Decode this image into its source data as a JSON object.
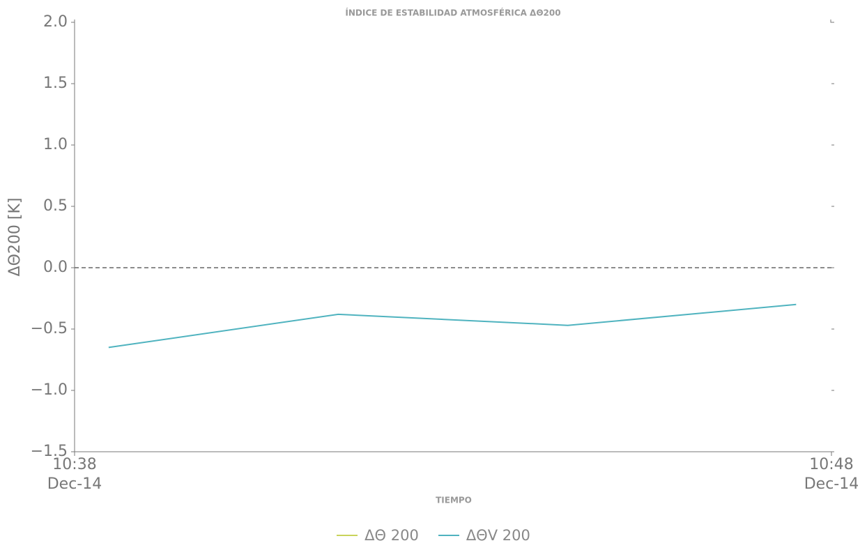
{
  "chart_data": {
    "type": "line",
    "title": "ÍNDICE DE ESTABILIDAD ATMOSFÉRICA ΔΘ200",
    "xlabel": "TIEMPO",
    "ylabel": "ΔΘ200 [K]",
    "x": [
      "10:38:27",
      "10:41:29",
      "10:44:31",
      "10:47:32"
    ],
    "xlim": [
      "10:38",
      "10:48"
    ],
    "xticks": [
      {
        "value": "10:38",
        "label": "10:38\nDec-14"
      },
      {
        "value": "10:48",
        "label": "10:48\nDec-14"
      }
    ],
    "ylim": [
      -1.5,
      2.0
    ],
    "yticks": [
      {
        "value": -1.5,
        "label": "−1.5"
      },
      {
        "value": -1.0,
        "label": "−1.0"
      },
      {
        "value": -0.5,
        "label": "−0.5"
      },
      {
        "value": 0.0,
        "label": "0.0"
      },
      {
        "value": 0.5,
        "label": "0.5"
      },
      {
        "value": 1.0,
        "label": "1.0"
      },
      {
        "value": 1.5,
        "label": "1.5"
      },
      {
        "value": 2.0,
        "label": "2.0"
      }
    ],
    "reference_line": 0,
    "series": [
      {
        "name": "ΔΘ 200",
        "color": "#c9d35b",
        "values": [
          null,
          null,
          null,
          null
        ]
      },
      {
        "name": "ΔΘV 200",
        "color": "#4fb3bf",
        "values": [
          -0.65,
          -0.38,
          -0.47,
          -0.3
        ]
      }
    ],
    "legend": "bottom"
  }
}
